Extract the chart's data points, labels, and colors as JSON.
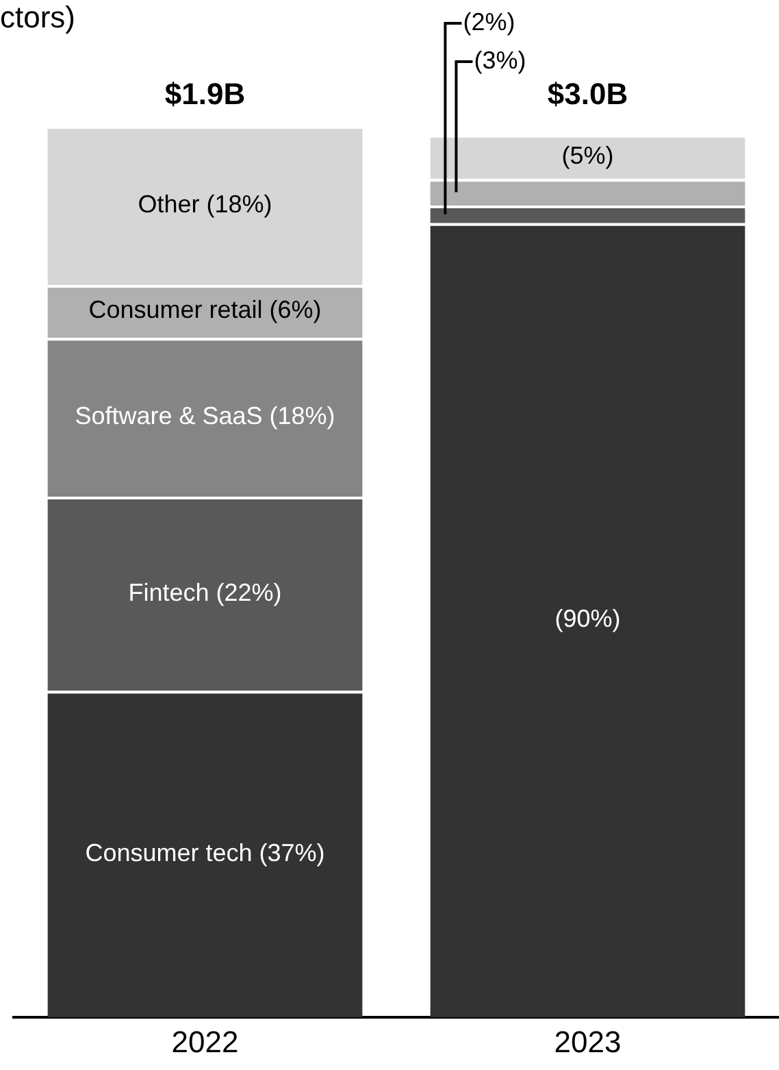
{
  "chart_data": {
    "type": "bar",
    "title": "ctors)",
    "stacked": true,
    "categories": [
      "2022",
      "2023"
    ],
    "series": [
      {
        "color": "#333333",
        "values": [
          37,
          90
        ],
        "value_labels": [
          "Consumer tech (37%)",
          "(90%)"
        ]
      },
      {
        "color": "#595959",
        "values": [
          22,
          2
        ],
        "value_labels": [
          "Fintech (22%)",
          "(2%)"
        ]
      },
      {
        "color": "#858585",
        "values": [
          18,
          0
        ],
        "value_labels": [
          "Software & SaaS (18%)",
          null
        ]
      },
      {
        "color": "#b0b0b0",
        "values": [
          6,
          3
        ],
        "value_labels": [
          "Consumer retail (6%)",
          "(3%)"
        ]
      },
      {
        "color": "#d6d6d6",
        "values": [
          18,
          5
        ],
        "value_labels": [
          "Other (18%)",
          "(5%)"
        ]
      }
    ],
    "annotations": [
      "$1.9B",
      "$3.0B"
    ]
  }
}
